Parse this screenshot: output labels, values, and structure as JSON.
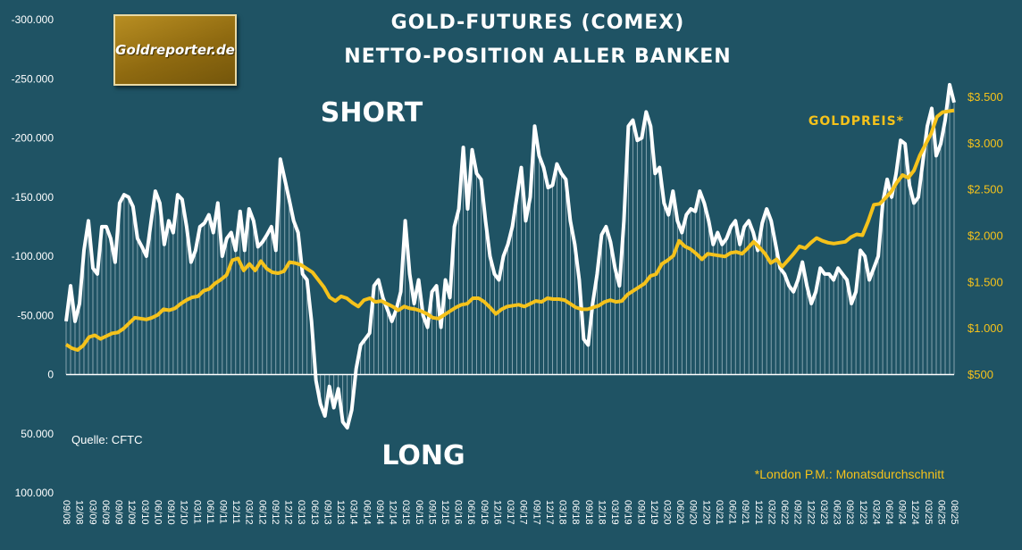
{
  "logo": {
    "text": "Goldreporter.de"
  },
  "chart_data": {
    "type": "line",
    "title": "GOLD-FUTURES (COMEX)",
    "subtitle": "NETTO-POSITION ALLER BANKEN",
    "annotations": {
      "short": "SHORT",
      "long": "LONG",
      "gold_label": "GOLDPREIS*",
      "source": "Quelle: CFTC",
      "footnote": "*London P.M.: Monatsdurchschnitt"
    },
    "y_left": {
      "ticks": [
        -300000,
        -250000,
        -200000,
        -150000,
        -100000,
        -50000,
        0,
        50000,
        100000
      ],
      "labels": [
        "-300.000",
        "-250.000",
        "-200.000",
        "-150.000",
        "-100.000",
        "-50.000",
        "0",
        "50.000",
        "100.000"
      ],
      "range": [
        -300000,
        100000
      ]
    },
    "y_right": {
      "ticks": [
        500,
        1000,
        1500,
        2000,
        2500,
        3000,
        3500
      ],
      "labels": [
        "$500",
        "$1.000",
        "$1.500",
        "$2.000",
        "$2.500",
        "$3.000",
        "$3.500"
      ],
      "range": [
        500,
        3500
      ]
    },
    "x_labels": [
      "09/08",
      "12/08",
      "03/09",
      "06/09",
      "09/09",
      "12/09",
      "03/10",
      "06/10",
      "09/10",
      "12/10",
      "03/11",
      "06/11",
      "09/11",
      "12/11",
      "03/12",
      "06/12",
      "09/12",
      "12/12",
      "03/13",
      "06/13",
      "09/13",
      "12/13",
      "03/14",
      "06/14",
      "09/14",
      "12/14",
      "03/15",
      "06/15",
      "09/15",
      "12/15",
      "03/16",
      "06/16",
      "09/16",
      "12/16",
      "03/17",
      "06/17",
      "09/17",
      "12/17",
      "03/18",
      "06/18",
      "09/18",
      "12/18",
      "03/19",
      "06/19",
      "09/19",
      "12/19",
      "03/20",
      "06/20",
      "09/20",
      "12/20",
      "03/21",
      "06/21",
      "09/21",
      "12/21",
      "03/22",
      "06/22",
      "09/22",
      "12/22",
      "03/23",
      "06/23",
      "09/23",
      "12/23",
      "03/24",
      "06/24",
      "09/24",
      "12/24",
      "03/25",
      "06/25",
      "08/25"
    ],
    "series": [
      {
        "name": "",
        "axis": "left",
        "color": "#ffffff",
        "values": [
          -45000,
          -75000,
          -45000,
          -60000,
          -105000,
          -130000,
          -90000,
          -85000,
          -125000,
          -125000,
          -115000,
          -95000,
          -145000,
          -152000,
          -150000,
          -142000,
          -115000,
          -108000,
          -100000,
          -128000,
          -155000,
          -145000,
          -110000,
          -130000,
          -120000,
          -152000,
          -148000,
          -125000,
          -95000,
          -105000,
          -125000,
          -128000,
          -135000,
          -120000,
          -145000,
          -100000,
          -115000,
          -120000,
          -105000,
          -138000,
          -105000,
          -140000,
          -130000,
          -108000,
          -112000,
          -118000,
          -125000,
          -105000,
          -182000,
          -165000,
          -148000,
          -130000,
          -120000,
          -85000,
          -80000,
          -45000,
          5000,
          25000,
          35000,
          10000,
          28000,
          12000,
          40000,
          45000,
          30000,
          -5000,
          -25000,
          -30000,
          -35000,
          -75000,
          -80000,
          -65000,
          -55000,
          -45000,
          -55000,
          -70000,
          -130000,
          -85000,
          -60000,
          -80000,
          -50000,
          -40000,
          -70000,
          -75000,
          -40000,
          -80000,
          -65000,
          -125000,
          -140000,
          -192000,
          -140000,
          -190000,
          -170000,
          -165000,
          -130000,
          -100000,
          -85000,
          -80000,
          -100000,
          -110000,
          -125000,
          -150000,
          -175000,
          -130000,
          -150000,
          -210000,
          -185000,
          -175000,
          -158000,
          -160000,
          -178000,
          -170000,
          -165000,
          -130000,
          -110000,
          -80000,
          -30000,
          -25000,
          -60000,
          -85000,
          -118000,
          -125000,
          -112000,
          -90000,
          -75000,
          -130000,
          -210000,
          -215000,
          -198000,
          -200000,
          -222000,
          -210000,
          -170000,
          -175000,
          -145000,
          -135000,
          -155000,
          -130000,
          -120000,
          -135000,
          -140000,
          -138000,
          -155000,
          -145000,
          -130000,
          -110000,
          -120000,
          -110000,
          -115000,
          -125000,
          -130000,
          -110000,
          -125000,
          -130000,
          -120000,
          -105000,
          -128000,
          -140000,
          -130000,
          -110000,
          -90000,
          -85000,
          -75000,
          -70000,
          -80000,
          -95000,
          -75000,
          -60000,
          -70000,
          -90000,
          -85000,
          -85000,
          -80000,
          -90000,
          -85000,
          -80000,
          -60000,
          -70000,
          -105000,
          -100000,
          -80000,
          -90000,
          -100000,
          -145000,
          -165000,
          -150000,
          -170000,
          -198000,
          -195000,
          -160000,
          -145000,
          -150000,
          -180000,
          -210000,
          -225000,
          -185000,
          -195000,
          -215000,
          -245000,
          -230000
        ]
      },
      {
        "name": "GOLDPREIS*",
        "axis": "right",
        "color": "#f5c21b",
        "values": [
          820,
          780,
          760,
          810,
          900,
          920,
          880,
          910,
          940,
          950,
          990,
          1050,
          1110,
          1100,
          1090,
          1110,
          1140,
          1200,
          1190,
          1210,
          1260,
          1300,
          1330,
          1340,
          1400,
          1420,
          1480,
          1520,
          1570,
          1730,
          1750,
          1620,
          1690,
          1620,
          1720,
          1640,
          1600,
          1590,
          1610,
          1710,
          1700,
          1680,
          1640,
          1600,
          1520,
          1440,
          1330,
          1290,
          1340,
          1320,
          1270,
          1230,
          1300,
          1320,
          1280,
          1290,
          1260,
          1230,
          1190,
          1230,
          1210,
          1200,
          1180,
          1150,
          1110,
          1100,
          1140,
          1180,
          1220,
          1250,
          1260,
          1320,
          1320,
          1280,
          1220,
          1150,
          1200,
          1230,
          1240,
          1250,
          1230,
          1260,
          1290,
          1280,
          1320,
          1310,
          1310,
          1300,
          1260,
          1220,
          1200,
          1200,
          1220,
          1240,
          1280,
          1300,
          1280,
          1290,
          1360,
          1400,
          1440,
          1480,
          1560,
          1580,
          1690,
          1730,
          1780,
          1940,
          1880,
          1850,
          1800,
          1740,
          1800,
          1790,
          1780,
          1770,
          1810,
          1820,
          1800,
          1860,
          1930,
          1870,
          1800,
          1700,
          1740,
          1660,
          1730,
          1800,
          1880,
          1860,
          1920,
          1970,
          1940,
          1920,
          1910,
          1920,
          1930,
          1980,
          2010,
          2000,
          2150,
          2330,
          2340,
          2400,
          2470,
          2570,
          2650,
          2620,
          2700,
          2860,
          2980,
          3100,
          3280,
          3330,
          3340,
          3350
        ]
      }
    ]
  }
}
